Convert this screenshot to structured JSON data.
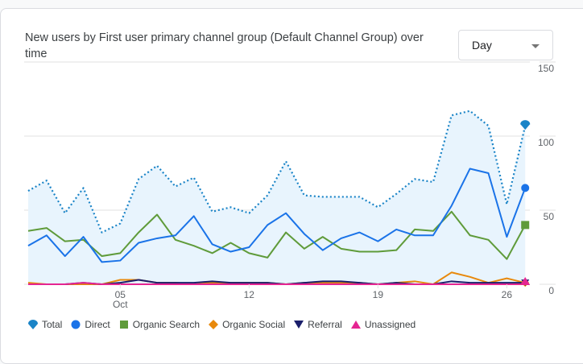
{
  "card": {
    "title": "New users by First user primary channel group (Default Channel Group) over time",
    "period_select": {
      "value": "Day"
    }
  },
  "colors": {
    "total": "#1a84c7",
    "direct": "#1a73e8",
    "organic_search": "#5f9b3a",
    "organic_social": "#e8890c",
    "referral": "#1b1f6b",
    "unassigned": "#e52592",
    "area_fill": "#e8f4fd",
    "grid": "#e0e0e0"
  },
  "chart_data": {
    "type": "line",
    "title": "New users by First user primary channel group (Default Channel Group) over time",
    "xlabel": "",
    "ylabel": "",
    "x": [
      "Sep 30",
      "Oct 1",
      "Oct 2",
      "Oct 3",
      "Oct 4",
      "Oct 5",
      "Oct 6",
      "Oct 7",
      "Oct 8",
      "Oct 9",
      "Oct 10",
      "Oct 11",
      "Oct 12",
      "Oct 13",
      "Oct 14",
      "Oct 15",
      "Oct 16",
      "Oct 17",
      "Oct 18",
      "Oct 19",
      "Oct 20",
      "Oct 21",
      "Oct 22",
      "Oct 23",
      "Oct 24",
      "Oct 25",
      "Oct 26",
      "Oct 27"
    ],
    "x_ticks": [
      {
        "index": 5,
        "label": "05",
        "sublabel": "Oct"
      },
      {
        "index": 12,
        "label": "12",
        "sublabel": ""
      },
      {
        "index": 19,
        "label": "19",
        "sublabel": ""
      },
      {
        "index": 26,
        "label": "26",
        "sublabel": ""
      }
    ],
    "y_ticks": [
      0,
      50,
      100,
      150
    ],
    "ylim": [
      0,
      150
    ],
    "grid": true,
    "legend_position": "bottom-left",
    "series": [
      {
        "key": "total",
        "name": "Total",
        "style": "dotted-area",
        "marker": "pin",
        "values": [
          63,
          70,
          48,
          65,
          35,
          41,
          71,
          80,
          66,
          72,
          49,
          52,
          48,
          60,
          83,
          60,
          59,
          59,
          59,
          52,
          61,
          71,
          69,
          114,
          117,
          107,
          54,
          107
        ]
      },
      {
        "key": "direct",
        "name": "Direct",
        "style": "solid",
        "marker": "circle",
        "values": [
          26,
          33,
          19,
          32,
          15,
          16,
          28,
          31,
          33,
          46,
          27,
          22,
          25,
          40,
          48,
          34,
          23,
          31,
          35,
          29,
          37,
          33,
          33,
          53,
          78,
          75,
          32,
          65
        ]
      },
      {
        "key": "organic_search",
        "name": "Organic Search",
        "style": "solid",
        "marker": "square",
        "values": [
          36,
          38,
          29,
          30,
          19,
          21,
          35,
          47,
          30,
          26,
          21,
          28,
          21,
          18,
          35,
          24,
          32,
          24,
          22,
          22,
          23,
          37,
          36,
          49,
          33,
          30,
          17,
          40
        ]
      },
      {
        "key": "organic_social",
        "name": "Organic Social",
        "style": "solid",
        "marker": "diamond",
        "values": [
          1,
          0,
          0,
          0,
          0,
          3,
          3,
          1,
          1,
          0,
          1,
          1,
          1,
          1,
          0,
          1,
          1,
          1,
          1,
          0,
          1,
          2,
          0,
          8,
          5,
          1,
          4,
          1
        ]
      },
      {
        "key": "referral",
        "name": "Referral",
        "style": "solid",
        "marker": "triangle-down",
        "values": [
          0,
          0,
          0,
          1,
          0,
          1,
          3,
          1,
          1,
          1,
          2,
          1,
          1,
          1,
          0,
          1,
          2,
          2,
          1,
          0,
          1,
          0,
          0,
          2,
          1,
          1,
          1,
          1
        ]
      },
      {
        "key": "unassigned",
        "name": "Unassigned",
        "style": "solid",
        "marker": "triangle-up",
        "values": [
          0,
          0,
          0,
          1,
          0,
          0,
          0,
          0,
          0,
          0,
          0,
          0,
          0,
          0,
          0,
          0,
          0,
          0,
          0,
          0,
          0,
          0,
          0,
          0,
          0,
          0,
          0,
          0
        ]
      }
    ]
  },
  "legend": [
    {
      "key": "total",
      "label": "Total"
    },
    {
      "key": "direct",
      "label": "Direct"
    },
    {
      "key": "organic_search",
      "label": "Organic Search"
    },
    {
      "key": "organic_social",
      "label": "Organic Social"
    },
    {
      "key": "referral",
      "label": "Referral"
    },
    {
      "key": "unassigned",
      "label": "Unassigned"
    }
  ]
}
